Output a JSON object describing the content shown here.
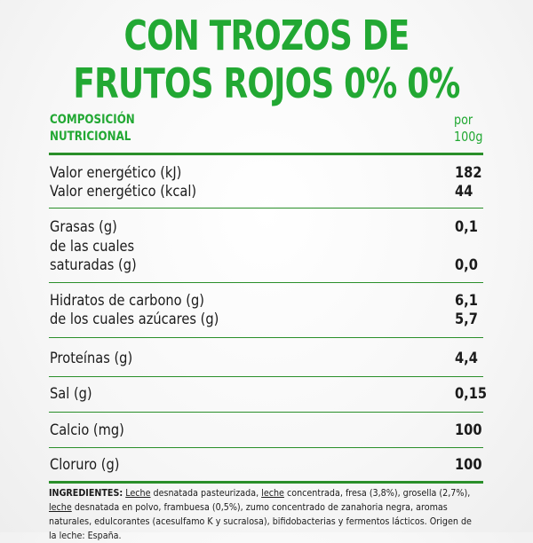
{
  "title": {
    "line1": "CON TROZOS DE",
    "line2": "FRUTOS ROJOS 0% 0%"
  },
  "table": {
    "header_left_line1": "COMPOSICIÓN",
    "header_left_line2": "NUTRICIONAL",
    "header_right_line1": "por",
    "header_right_line2": "100g",
    "rows": [
      {
        "label": "Valor energético (kJ)",
        "value": "182"
      },
      {
        "label": "Valor energético (kcal)",
        "value": "44"
      },
      {
        "label": "Grasas (g)",
        "value": "0,1"
      },
      {
        "label": "de las cuales",
        "value": ""
      },
      {
        "label": "saturadas (g)",
        "value": "0,0"
      },
      {
        "label": "Hidratos de carbono (g)",
        "value": "6,1"
      },
      {
        "label": "de los cuales azúcares (g)",
        "value": "5,7"
      },
      {
        "label": "Proteínas (g)",
        "value": "4,4"
      },
      {
        "label": "Sal (g)",
        "value": "0,15"
      },
      {
        "label": "Calcio (mg)",
        "value": "100"
      },
      {
        "label": "Cloruro (g)",
        "value": "100"
      }
    ]
  },
  "ingredients": {
    "heading": "INGREDIENTES:",
    "parts": [
      "Leche",
      " desnatada pasteurizada, ",
      "leche",
      " concentrada, fresa (3,8%), grosella (2,7%), ",
      "leche",
      " desnatada en polvo, frambuesa (0,5%), zumo concentrado de zanahoria negra, aromas naturales, edulcorantes (acesulfamo K y sucralosa), bifidobacterias y fermentos lácticos. Origen de la leche: España."
    ]
  },
  "colors": {
    "accent": "#22a833",
    "rule": "#2a8f2a",
    "text": "#1b1b1b"
  }
}
